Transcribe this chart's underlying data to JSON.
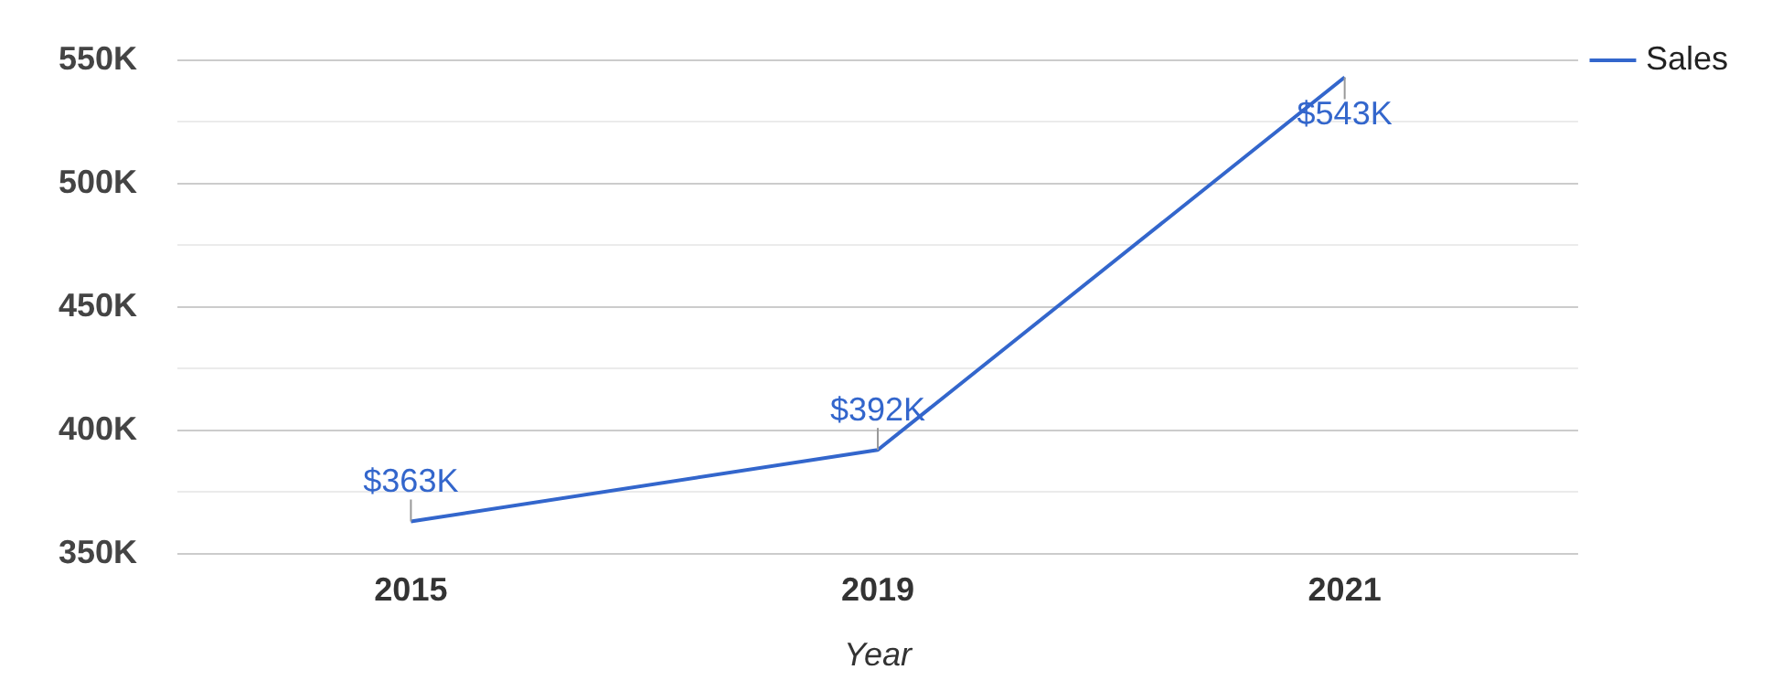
{
  "chart_data": {
    "type": "line",
    "xlabel": "Year",
    "categories": [
      "2015",
      "2019",
      "2021"
    ],
    "series": [
      {
        "name": "Sales",
        "color": "#3366cc",
        "values": [
          363000,
          392000,
          543000
        ],
        "value_labels": [
          "$363K",
          "$392K",
          "$543K"
        ]
      }
    ],
    "ylim": [
      350000,
      550000
    ],
    "yticks": [
      {
        "value": 350000,
        "label": "350K"
      },
      {
        "value": 375000,
        "label": null
      },
      {
        "value": 400000,
        "label": "400K"
      },
      {
        "value": 425000,
        "label": null
      },
      {
        "value": 450000,
        "label": "450K"
      },
      {
        "value": 475000,
        "label": null
      },
      {
        "value": 500000,
        "label": "500K"
      },
      {
        "value": 525000,
        "label": null
      },
      {
        "value": 550000,
        "label": "550K"
      }
    ],
    "grid": "y",
    "legend": "top right",
    "marker": "none",
    "line_style": "solid"
  }
}
